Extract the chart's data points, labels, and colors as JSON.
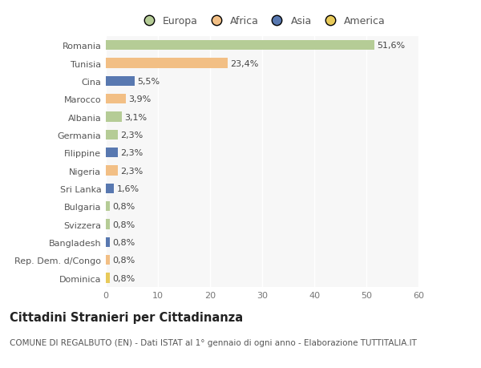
{
  "categories": [
    "Romania",
    "Tunisia",
    "Cina",
    "Marocco",
    "Albania",
    "Germania",
    "Filippine",
    "Nigeria",
    "Sri Lanka",
    "Bulgaria",
    "Svizzera",
    "Bangladesh",
    "Rep. Dem. d/Congo",
    "Dominica"
  ],
  "values": [
    51.6,
    23.4,
    5.5,
    3.9,
    3.1,
    2.3,
    2.3,
    2.3,
    1.6,
    0.8,
    0.8,
    0.8,
    0.8,
    0.8
  ],
  "labels": [
    "51,6%",
    "23,4%",
    "5,5%",
    "3,9%",
    "3,1%",
    "2,3%",
    "2,3%",
    "2,3%",
    "1,6%",
    "0,8%",
    "0,8%",
    "0,8%",
    "0,8%",
    "0,8%"
  ],
  "colors": [
    "#b5cc96",
    "#f2bf85",
    "#5878b0",
    "#f2bf85",
    "#b5cc96",
    "#b5cc96",
    "#5878b0",
    "#f2bf85",
    "#5878b0",
    "#b5cc96",
    "#b5cc96",
    "#5878b0",
    "#f2bf85",
    "#e8ca5a"
  ],
  "legend_labels": [
    "Europa",
    "Africa",
    "Asia",
    "America"
  ],
  "legend_colors": [
    "#b5cc96",
    "#f2bf85",
    "#5878b0",
    "#e8ca5a"
  ],
  "title": "Cittadini Stranieri per Cittadinanza",
  "subtitle": "COMUNE DI REGALBUTO (EN) - Dati ISTAT al 1° gennaio di ogni anno - Elaborazione TUTTITALIA.IT",
  "xlim": [
    0,
    60
  ],
  "xticks": [
    0,
    10,
    20,
    30,
    40,
    50,
    60
  ],
  "background_color": "#ffffff",
  "plot_bg_color": "#f7f7f7",
  "bar_height": 0.55,
  "title_fontsize": 10.5,
  "subtitle_fontsize": 7.5,
  "label_fontsize": 8,
  "tick_fontsize": 8,
  "legend_fontsize": 9
}
